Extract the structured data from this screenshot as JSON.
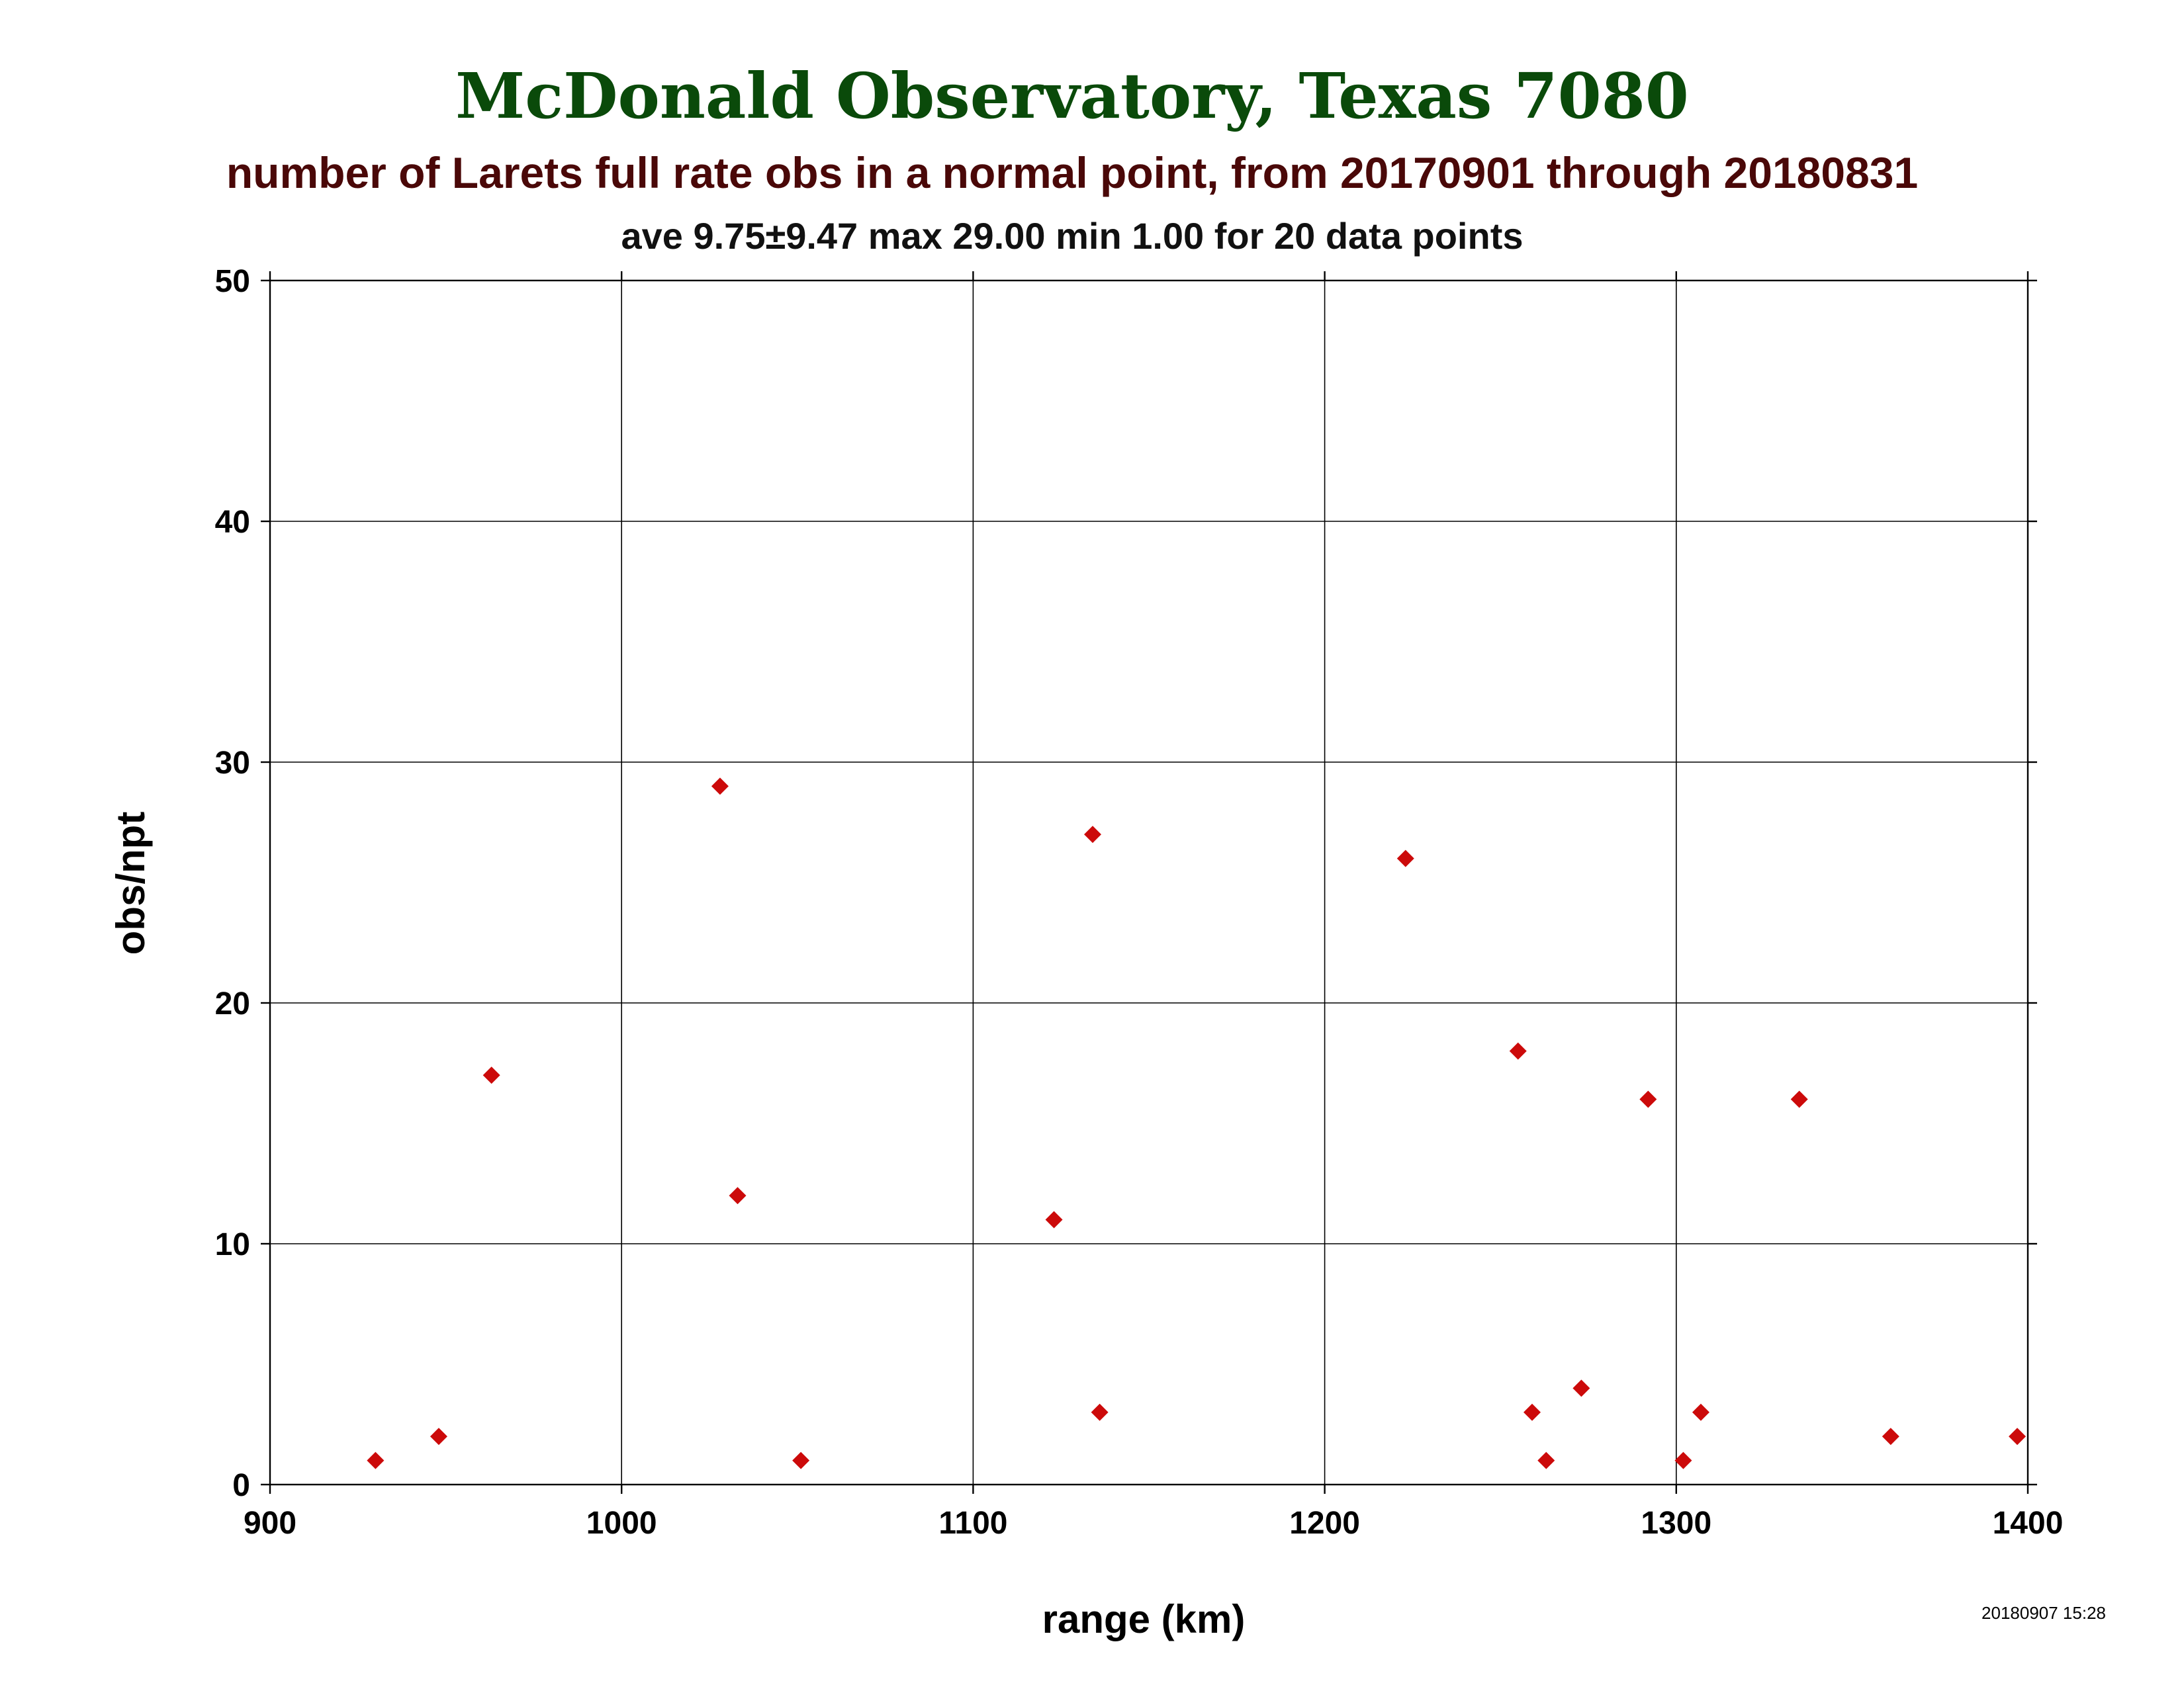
{
  "title": "McDonald Observatory, Texas 7080",
  "subtitle": "number of Larets full rate obs in a normal point, from 20170901 through 20180831",
  "stats_line": "ave 9.75±9.47 max 29.00 min 1.00 for 20 data points",
  "timestamp": "20180907 15:28",
  "colors": {
    "title": "#0a4a0a",
    "subtitle": "#4a0808",
    "stats": "#111111",
    "marker": "#cc0a0a"
  },
  "chart_data": {
    "type": "scatter",
    "title": "McDonald Observatory, Texas 7080",
    "subtitle": "number of Larets full rate obs in a normal point, from 20170901 through 20180831",
    "xlabel": "range (km)",
    "ylabel": "obs/npt",
    "xlim": [
      900,
      1400
    ],
    "ylim": [
      0,
      50
    ],
    "xticks": [
      "900",
      "1000",
      "1100",
      "1200",
      "1300",
      "1400"
    ],
    "yticks": [
      "0",
      "10",
      "20",
      "30",
      "40",
      "50"
    ],
    "grid": true,
    "marker": "diamond",
    "series": [
      {
        "points": [
          {
            "x": 930,
            "y": 1
          },
          {
            "x": 948,
            "y": 2
          },
          {
            "x": 963,
            "y": 17
          },
          {
            "x": 1028,
            "y": 29
          },
          {
            "x": 1033,
            "y": 12
          },
          {
            "x": 1051,
            "y": 1
          },
          {
            "x": 1123,
            "y": 11
          },
          {
            "x": 1134,
            "y": 27
          },
          {
            "x": 1136,
            "y": 3
          },
          {
            "x": 1223,
            "y": 26
          },
          {
            "x": 1255,
            "y": 18
          },
          {
            "x": 1259,
            "y": 3
          },
          {
            "x": 1263,
            "y": 1
          },
          {
            "x": 1273,
            "y": 4
          },
          {
            "x": 1292,
            "y": 16
          },
          {
            "x": 1302,
            "y": 1
          },
          {
            "x": 1307,
            "y": 3
          },
          {
            "x": 1335,
            "y": 16
          },
          {
            "x": 1361,
            "y": 2
          },
          {
            "x": 1397,
            "y": 2
          }
        ]
      }
    ]
  }
}
